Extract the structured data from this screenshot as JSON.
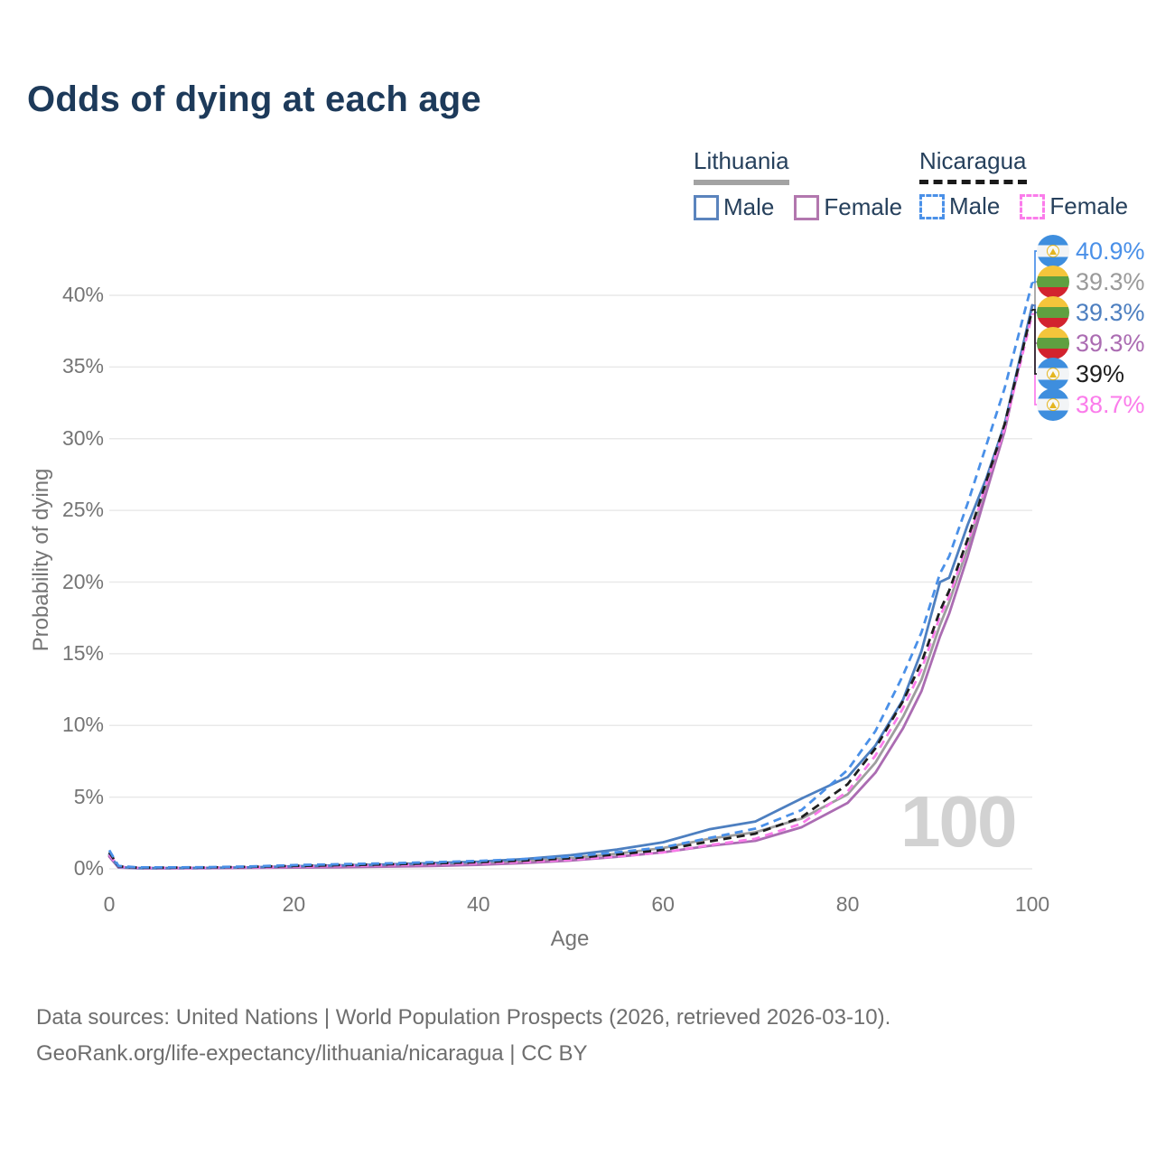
{
  "title": "Odds of dying at each age",
  "legend": {
    "lithuania": {
      "name": "Lithuania",
      "male_label": "Male",
      "female_label": "Female"
    },
    "nicaragua": {
      "name": "Nicaragua",
      "male_label": "Male",
      "female_label": "Female"
    }
  },
  "axes": {
    "x_label": "Age",
    "y_label": "Probability of dying"
  },
  "watermark": "100",
  "footer": {
    "line1": "Data sources: United Nations | World Population Prospects (2026, retrieved 2026-03-10).",
    "line2": "GeoRank.org/life-expectancy/lithuania/nicaragua | CC BY"
  },
  "colors": {
    "lithuania_male": "#4d7fc0",
    "lithuania_female": "#ab6cb2",
    "lithuania_total": "#9e9e9e",
    "nicaragua_male": "#4a90e8",
    "nicaragua_female": "#fb7ceb",
    "nicaragua_total": "#1f1f1f",
    "title_text": "#1d3a5a",
    "legend_text": "#26405c",
    "axis_text": "#757575",
    "grid": "#e9e9e9",
    "watermark_text": "#d2d2d2",
    "end_label_gray": "#9a9a9a"
  },
  "chart_data": {
    "type": "line",
    "title": "Odds of dying at each age",
    "xlabel": "Age",
    "ylabel": "Probability of dying",
    "xlim": [
      0,
      100
    ],
    "ylim": [
      0,
      43
    ],
    "x_ticks": [
      0,
      20,
      40,
      60,
      80,
      100
    ],
    "y_ticks": [
      0,
      5,
      10,
      15,
      20,
      25,
      30,
      35,
      40
    ],
    "y_tick_suffix": "%",
    "grid": "horizontal-only",
    "legend_position": "top-right",
    "x": [
      0,
      1,
      3,
      5,
      10,
      15,
      20,
      25,
      30,
      35,
      40,
      45,
      50,
      55,
      60,
      65,
      70,
      75,
      80,
      83,
      86,
      88,
      90,
      91,
      93,
      95,
      97,
      100
    ],
    "series": [
      {
        "name": "Lithuania",
        "country": "Lithuania",
        "sex": "Both",
        "line": "solid",
        "color_key": "lithuania_total",
        "end_value_label": "39.3%",
        "label_row": 1,
        "values": [
          0.92,
          0.1,
          0.05,
          0.04,
          0.05,
          0.09,
          0.14,
          0.18,
          0.23,
          0.3,
          0.4,
          0.53,
          0.75,
          1.05,
          1.45,
          2.1,
          2.55,
          3.5,
          5.2,
          7.4,
          10.6,
          13.2,
          17.0,
          18.6,
          22.4,
          26.6,
          30.8,
          39.3
        ]
      },
      {
        "name": "Lithuania Female",
        "country": "Lithuania",
        "sex": "Female",
        "line": "solid",
        "color_key": "lithuania_female",
        "end_value_label": "39.3%",
        "label_row": 3,
        "values": [
          0.85,
          0.09,
          0.04,
          0.03,
          0.04,
          0.06,
          0.09,
          0.11,
          0.15,
          0.2,
          0.28,
          0.4,
          0.58,
          0.84,
          1.15,
          1.6,
          1.95,
          2.9,
          4.6,
          6.7,
          9.8,
          12.4,
          16.2,
          17.8,
          21.8,
          26.2,
          30.5,
          39.3
        ]
      },
      {
        "name": "Lithuania Male",
        "country": "Lithuania",
        "sex": "Male",
        "line": "solid",
        "color_key": "lithuania_male",
        "end_value_label": "39.3%",
        "label_row": 2,
        "values": [
          1.0,
          0.12,
          0.05,
          0.05,
          0.06,
          0.1,
          0.18,
          0.24,
          0.3,
          0.4,
          0.5,
          0.68,
          0.95,
          1.35,
          1.85,
          2.75,
          3.3,
          4.9,
          6.4,
          8.6,
          11.8,
          15.2,
          20.0,
          20.3,
          24.0,
          27.2,
          31.0,
          39.3
        ]
      },
      {
        "name": "Nicaragua Female",
        "country": "Nicaragua",
        "sex": "Female",
        "line": "dashed",
        "color_key": "nicaragua_female",
        "end_value_label": "38.7%",
        "label_row": 5,
        "values": [
          1.0,
          0.15,
          0.07,
          0.06,
          0.07,
          0.1,
          0.15,
          0.2,
          0.25,
          0.31,
          0.38,
          0.48,
          0.63,
          0.86,
          1.14,
          1.65,
          2.1,
          3.15,
          5.4,
          7.9,
          11.2,
          13.9,
          17.6,
          19.0,
          22.7,
          26.8,
          30.7,
          38.7
        ]
      },
      {
        "name": "Nicaragua",
        "country": "Nicaragua",
        "sex": "Both",
        "line": "dashed",
        "color_key": "nicaragua_total",
        "end_value_label": "39%",
        "label_row": 4,
        "values": [
          1.15,
          0.17,
          0.08,
          0.08,
          0.09,
          0.13,
          0.2,
          0.26,
          0.31,
          0.38,
          0.46,
          0.58,
          0.74,
          1.0,
          1.32,
          1.9,
          2.45,
          3.6,
          5.9,
          8.4,
          11.7,
          14.4,
          18.0,
          19.4,
          23.0,
          27.0,
          31.0,
          39.0
        ]
      },
      {
        "name": "Nicaragua Male",
        "country": "Nicaragua",
        "sex": "Male",
        "line": "dashed",
        "color_key": "nicaragua_male",
        "end_value_label": "40.9%",
        "label_row": 0,
        "values": [
          1.3,
          0.2,
          0.1,
          0.1,
          0.11,
          0.16,
          0.26,
          0.32,
          0.38,
          0.46,
          0.55,
          0.68,
          0.85,
          1.15,
          1.5,
          2.15,
          2.8,
          4.1,
          6.9,
          9.6,
          13.5,
          16.5,
          20.6,
          21.8,
          25.5,
          29.5,
          33.5,
          40.9
        ]
      }
    ]
  },
  "end_labels": [
    {
      "flag": "nicaragua",
      "text": "40.9%",
      "series": "Nicaragua Male",
      "color_key": "nicaragua_male"
    },
    {
      "flag": "lithuania",
      "text": "39.3%",
      "series": "Lithuania",
      "color_key": "end_label_gray"
    },
    {
      "flag": "lithuania",
      "text": "39.3%",
      "series": "Lithuania Male",
      "color_key": "lithuania_male"
    },
    {
      "flag": "lithuania",
      "text": "39.3%",
      "series": "Lithuania Female",
      "color_key": "lithuania_female"
    },
    {
      "flag": "nicaragua",
      "text": "39%",
      "series": "Nicaragua",
      "color_key": "nicaragua_total"
    },
    {
      "flag": "nicaragua",
      "text": "38.7%",
      "series": "Nicaragua Female",
      "color_key": "nicaragua_female"
    }
  ]
}
